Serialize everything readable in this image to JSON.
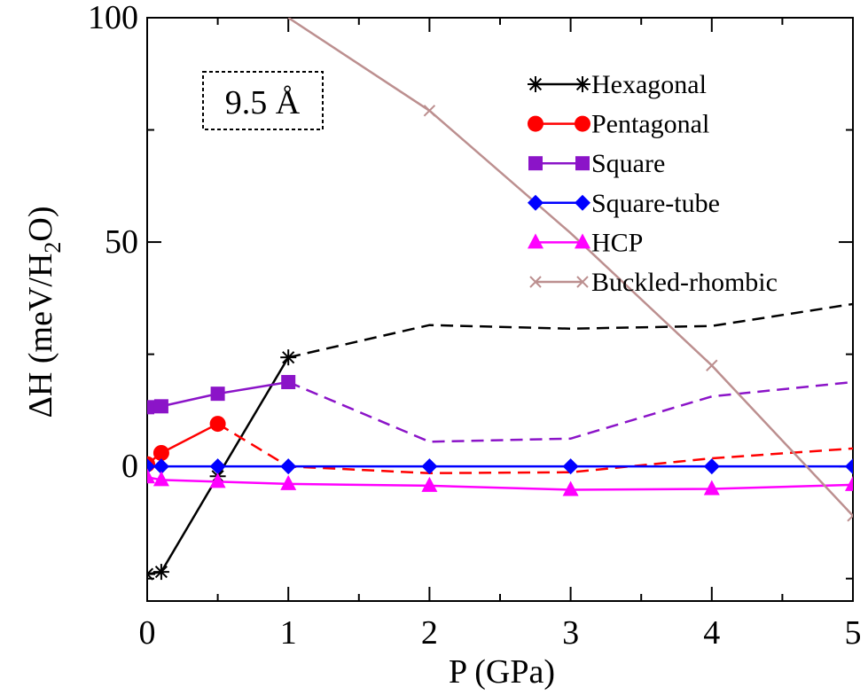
{
  "chart_data": {
    "type": "line",
    "title": "",
    "xlabel": "P (GPa)",
    "ylabel_main": "ΔH (meV/H",
    "ylabel_sub": "2",
    "ylabel_end": "O)",
    "annotation": "9.5 Å",
    "xlim": [
      0,
      5
    ],
    "ylim": [
      -30,
      100
    ],
    "xticks": [
      0,
      1,
      2,
      3,
      4,
      5
    ],
    "yticks": [
      0,
      50,
      100
    ],
    "grid": false,
    "legend_position": "top-right",
    "series": [
      {
        "name": "Hexagonal",
        "color": "#000000",
        "marker": "star",
        "solid": [
          [
            0,
            -24
          ],
          [
            0.1,
            -23.5
          ],
          [
            0.5,
            -2.2
          ],
          [
            1,
            24.3
          ]
        ],
        "dashed": [
          [
            1,
            24.3
          ],
          [
            2,
            31.5
          ],
          [
            3,
            30.7
          ],
          [
            4,
            31.3
          ],
          [
            5,
            36.2
          ]
        ],
        "markers": [
          [
            0,
            -24
          ],
          [
            0.1,
            -23.5
          ],
          [
            0.5,
            -2.2
          ],
          [
            1,
            24.3
          ]
        ]
      },
      {
        "name": "Pentagonal",
        "color": "#ff0000",
        "marker": "circle",
        "solid": [
          [
            0,
            0.5
          ],
          [
            0.1,
            3.0
          ],
          [
            0.5,
            9.5
          ]
        ],
        "dashed": [
          [
            0.5,
            9.5
          ],
          [
            1,
            0
          ],
          [
            2,
            -1.5
          ],
          [
            3,
            -1.3
          ],
          [
            4,
            1.8
          ],
          [
            5,
            4.0
          ]
        ],
        "markers": [
          [
            0,
            0.5
          ],
          [
            0.1,
            3.0
          ],
          [
            0.5,
            9.5
          ]
        ]
      },
      {
        "name": "Square",
        "color": "#8b14c8",
        "marker": "square",
        "solid": [
          [
            0,
            13.2
          ],
          [
            0.1,
            13.4
          ],
          [
            0.5,
            16.2
          ],
          [
            1,
            18.8
          ]
        ],
        "dashed": [
          [
            1,
            18.8
          ],
          [
            2,
            5.5
          ],
          [
            3,
            6.2
          ],
          [
            4,
            15.6
          ],
          [
            5,
            18.8
          ]
        ],
        "markers": [
          [
            0,
            13.2
          ],
          [
            0.1,
            13.4
          ],
          [
            0.5,
            16.2
          ],
          [
            1,
            18.8
          ]
        ]
      },
      {
        "name": "Square-tube",
        "color": "#0000ff",
        "marker": "diamond",
        "solid": [
          [
            0,
            0
          ],
          [
            0.1,
            0
          ],
          [
            0.5,
            0
          ],
          [
            1,
            0
          ],
          [
            2,
            0
          ],
          [
            3,
            0
          ],
          [
            4,
            0
          ],
          [
            5,
            0
          ]
        ],
        "dashed": [],
        "markers": [
          [
            0,
            0
          ],
          [
            0.1,
            0
          ],
          [
            0.5,
            0
          ],
          [
            1,
            0
          ],
          [
            2,
            0
          ],
          [
            3,
            0
          ],
          [
            4,
            0
          ],
          [
            5,
            0
          ]
        ]
      },
      {
        "name": "HCP",
        "color": "#ff00ff",
        "marker": "triangle",
        "solid": [
          [
            0,
            -2.4
          ],
          [
            0.1,
            -3.0
          ],
          [
            0.5,
            -3.4
          ],
          [
            1,
            -3.9
          ],
          [
            2,
            -4.3
          ],
          [
            3,
            -5.2
          ],
          [
            4,
            -5.0
          ],
          [
            5,
            -4.1
          ]
        ],
        "dashed": [],
        "markers": [
          [
            0,
            -2.4
          ],
          [
            0.1,
            -3.0
          ],
          [
            0.5,
            -3.4
          ],
          [
            1,
            -3.9
          ],
          [
            2,
            -4.3
          ],
          [
            3,
            -5.2
          ],
          [
            4,
            -5.0
          ],
          [
            5,
            -4.1
          ]
        ]
      },
      {
        "name": "Buckled-rhombic",
        "color": "#bc8f8f",
        "marker": "x",
        "solid": [
          [
            1,
            100
          ],
          [
            2,
            79.3
          ],
          [
            3,
            52
          ],
          [
            4,
            22.5
          ],
          [
            5,
            -11
          ]
        ],
        "dashed": [],
        "markers": [
          [
            2,
            79.3
          ],
          [
            4,
            22.5
          ],
          [
            5,
            -11
          ]
        ]
      }
    ]
  }
}
